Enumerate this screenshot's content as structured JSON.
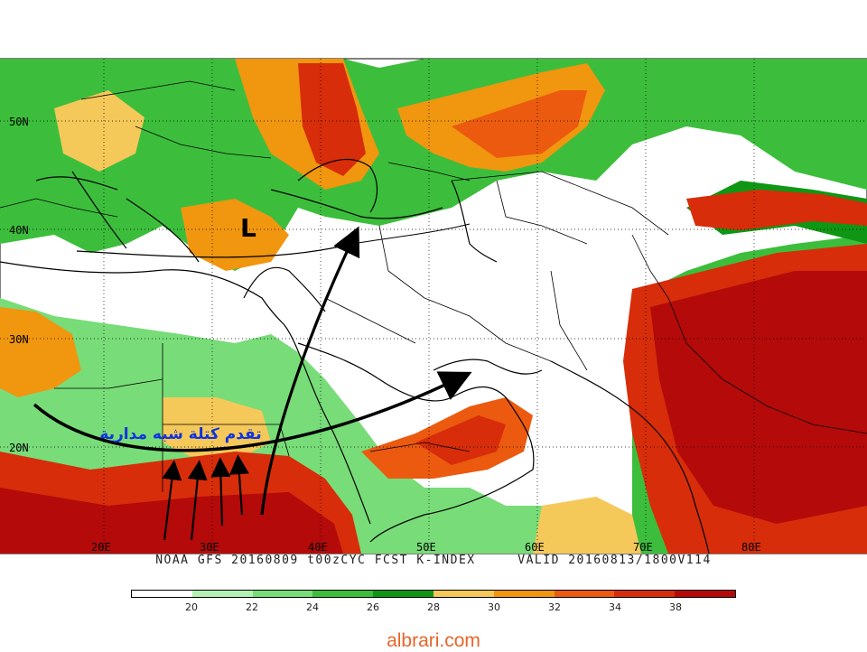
{
  "map": {
    "caption_left": "NOAA GFS 20160809 t00zCYC FCST K-INDEX",
    "caption_right": "VALID 20160813/1800V114",
    "annotation_arabic": "تقدم كتلة شبه مدارية",
    "low_label": "L",
    "lat_labels": [
      "50N",
      "40N",
      "30N",
      "20N"
    ],
    "lon_labels": [
      "20E",
      "30E",
      "40E",
      "50E",
      "60E",
      "70E",
      "80E"
    ]
  },
  "legend": {
    "colors": [
      "#ffffff",
      "#b4f0b4",
      "#78dc78",
      "#3cbe3c",
      "#0f9614",
      "#f5c85a",
      "#f0960f",
      "#eb5a0f",
      "#d72d0a",
      "#b40a0a"
    ],
    "labels": [
      "20",
      "22",
      "24",
      "26",
      "28",
      "30",
      "32",
      "34",
      "38"
    ]
  },
  "footer": {
    "site": "albrari.com"
  }
}
